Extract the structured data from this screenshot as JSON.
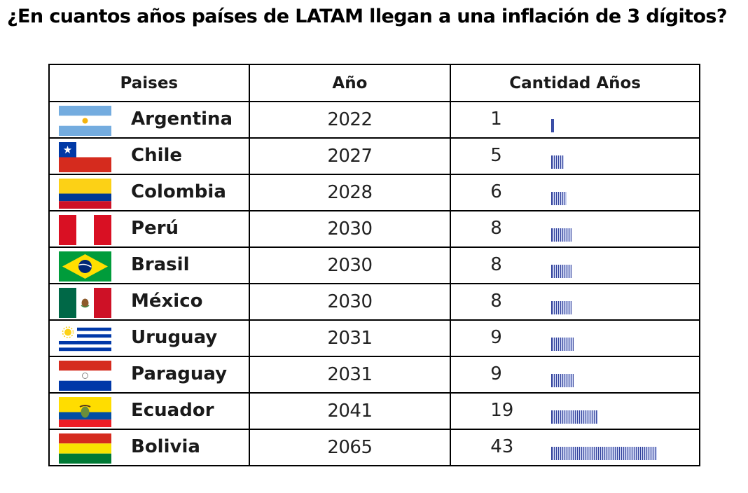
{
  "title": "¿En cuantos años países de LATAM llegan a una inflación de 3 dígitos?",
  "table": {
    "headers": {
      "country": "Paises",
      "year": "Año",
      "count": "Cantidad Años"
    },
    "rows": [
      {
        "country": "Argentina",
        "year": "2022",
        "count": "1",
        "years_value": 1,
        "flag": "argentina-flag-icon"
      },
      {
        "country": "Chile",
        "year": "2027",
        "count": "5",
        "years_value": 5,
        "flag": "chile-flag-icon"
      },
      {
        "country": "Colombia",
        "year": "2028",
        "count": "6",
        "years_value": 6,
        "flag": "colombia-flag-icon"
      },
      {
        "country": "Perú",
        "year": "2030",
        "count": "8",
        "years_value": 8,
        "flag": "peru-flag-icon"
      },
      {
        "country": "Brasil",
        "year": "2030",
        "count": "8",
        "years_value": 8,
        "flag": "brazil-flag-icon"
      },
      {
        "country": "México",
        "year": "2030",
        "count": "8",
        "years_value": 8,
        "flag": "mexico-flag-icon"
      },
      {
        "country": "Uruguay",
        "year": "2031",
        "count": "9",
        "years_value": 9,
        "flag": "uruguay-flag-icon"
      },
      {
        "country": "Paraguay",
        "year": "2031",
        "count": "9",
        "years_value": 9,
        "flag": "paraguay-flag-icon"
      },
      {
        "country": "Ecuador",
        "year": "2041",
        "count": "19",
        "years_value": 19,
        "flag": "ecuador-flag-icon"
      },
      {
        "country": "Bolivia",
        "year": "2065",
        "count": "43",
        "years_value": 43,
        "flag": "bolivia-flag-icon"
      }
    ]
  },
  "colors": {
    "bar": "#3a4fa8",
    "border": "#000000"
  }
}
